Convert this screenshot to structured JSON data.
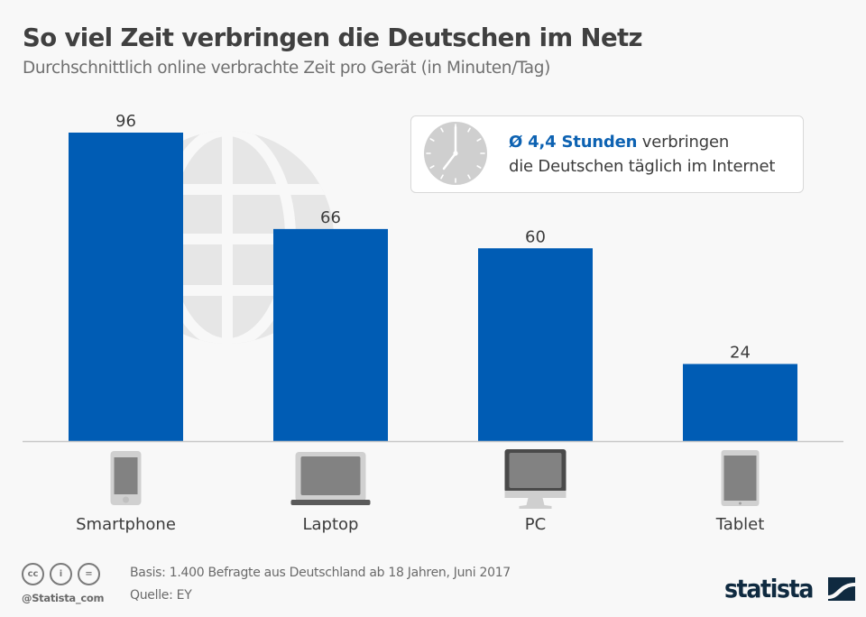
{
  "header": {
    "title": "So viel Zeit verbringen die Deutschen im Netz",
    "subtitle": "Durchschnittlich online verbrachte Zeit pro Gerät (in Minuten/Tag)"
  },
  "info_box": {
    "icon": "clock-icon",
    "highlight": "Ø 4,4 Stunden",
    "line1_rest": " verbringen",
    "line2": "die Deutschen täglich im Internet"
  },
  "chart_data": {
    "type": "bar",
    "title": "So viel Zeit verbringen die Deutschen im Netz",
    "subtitle": "Durchschnittlich online verbrachte Zeit pro Gerät (in Minuten/Tag)",
    "categories": [
      "Smartphone",
      "Laptop",
      "PC",
      "Tablet"
    ],
    "values": [
      96,
      66,
      60,
      24
    ],
    "category_icons": [
      "smartphone-icon",
      "laptop-icon",
      "desktop-pc-icon",
      "tablet-icon"
    ],
    "xlabel": "",
    "ylabel": "Minuten/Tag",
    "ylim": [
      0,
      96
    ],
    "grid": false,
    "legend": "none",
    "data_labels": true,
    "bar_color": "#005cb4",
    "background_decoration": "globe-icon"
  },
  "footer": {
    "license_icons": [
      "cc-icon",
      "attribution-icon",
      "no-derivatives-icon"
    ],
    "license_glyphs": [
      "cc",
      "i",
      "="
    ],
    "handle": "@Statista_com",
    "basis": "Basis: 1.400 Befragte aus Deutschland ab 18 Jahren, Juni 2017",
    "source": "Quelle: EY",
    "logo": "statista"
  },
  "colors": {
    "accent": "#005cb4",
    "highlight_text": "#0d62b2",
    "background": "#f8f8f8",
    "logo": "#0f2a40"
  }
}
